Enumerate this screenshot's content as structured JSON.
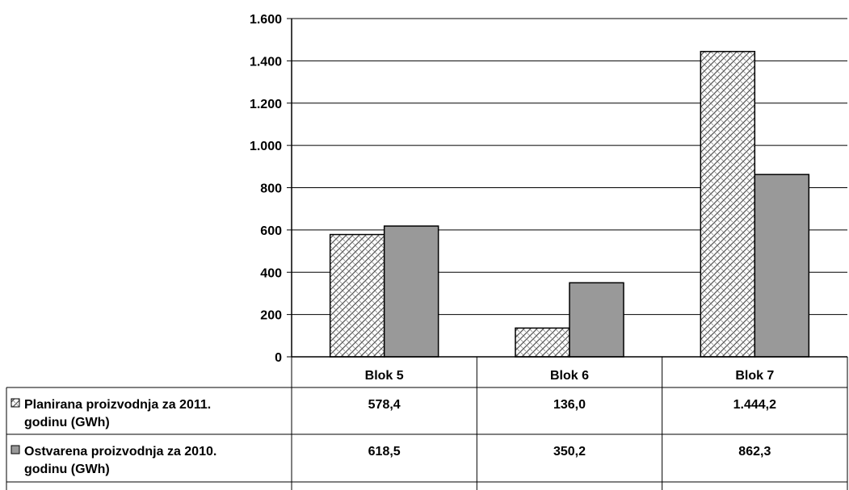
{
  "chart_data": {
    "type": "bar",
    "categories": [
      "Blok 5",
      "Blok 6",
      "Blok 7"
    ],
    "series": [
      {
        "name": "Planirana proizvodnja za 2011. godinu (GWh)",
        "name_lines": [
          "Planirana proizvodnja za 2011.",
          "godinu (GWh)"
        ],
        "values": [
          578.4,
          136.0,
          1444.2
        ],
        "labels": [
          "578,4",
          "136,0",
          "1.444,2"
        ],
        "fill": "pattern",
        "color": "#ffffff"
      },
      {
        "name": "Ostvarena proizvodnja za 2010. godinu (GWh)",
        "name_lines": [
          "Ostvarena proizvodnja za 2010.",
          "godinu (GWh)"
        ],
        "values": [
          618.5,
          350.2,
          862.3
        ],
        "labels": [
          "618,5",
          "350,2",
          "862,3"
        ],
        "fill": "solid",
        "color": "#999999"
      }
    ],
    "ylim": [
      0,
      1600
    ],
    "yticks": [
      0,
      200,
      400,
      600,
      800,
      1000,
      1200,
      1400,
      1600
    ],
    "ytick_labels": [
      "0",
      "200",
      "400",
      "600",
      "800",
      "1.000",
      "1.200",
      "1.400",
      "1.600"
    ],
    "grid": true,
    "legend": "data-table"
  }
}
